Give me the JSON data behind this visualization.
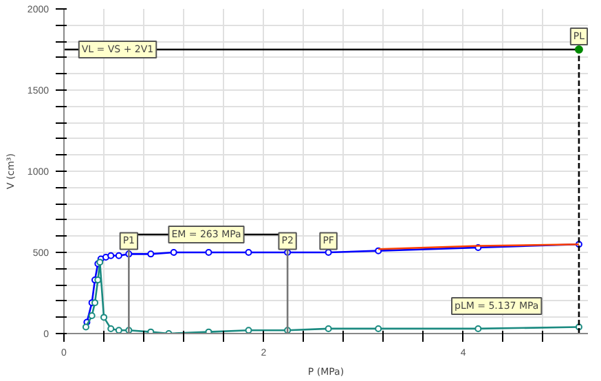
{
  "chart_data": {
    "type": "line",
    "xlabel": "P (MPa)",
    "ylabel": "V (cm³)",
    "xlim": [
      0,
      5.25
    ],
    "ylim": [
      0,
      2000
    ],
    "xticks": [
      0,
      {
        "value": 0.4,
        "label": null
      },
      {
        "value": 0.8,
        "label": null
      },
      {
        "value": 1.2,
        "label": null
      },
      {
        "value": 1.6,
        "label": null
      },
      2,
      {
        "value": 2.4,
        "label": null
      },
      {
        "value": 2.8,
        "label": null
      },
      {
        "value": 3.2,
        "label": null
      },
      {
        "value": 3.6,
        "label": null
      },
      4,
      {
        "value": 4.4,
        "label": null
      },
      {
        "value": 4.8,
        "label": null
      }
    ],
    "yticks": [
      0,
      {
        "value": 100,
        "label": null
      },
      {
        "value": 200,
        "label": null
      },
      {
        "value": 300,
        "label": null
      },
      {
        "value": 400,
        "label": null
      },
      500,
      {
        "value": 600,
        "label": null
      },
      {
        "value": 700,
        "label": null
      },
      {
        "value": 800,
        "label": null
      },
      {
        "value": 900,
        "label": null
      },
      1000,
      {
        "value": 1100,
        "label": null
      },
      {
        "value": 1200,
        "label": null
      },
      {
        "value": 1300,
        "label": null
      },
      {
        "value": 1400,
        "label": null
      },
      1500,
      {
        "value": 1600,
        "label": null
      },
      {
        "value": 1700,
        "label": null
      },
      {
        "value": 1800,
        "label": null
      },
      {
        "value": 1900,
        "label": null
      },
      2000
    ],
    "grid": true,
    "series": [
      {
        "color": "#0000ff",
        "marker": "circle",
        "x": [
          0.23,
          0.28,
          0.31,
          0.34,
          0.37,
          0.42,
          0.47,
          0.55,
          0.65,
          0.87,
          1.1,
          1.45,
          1.85,
          2.24,
          2.65,
          3.15,
          4.15,
          5.16
        ],
        "values": [
          70,
          190,
          330,
          430,
          460,
          470,
          480,
          480,
          490,
          490,
          500,
          500,
          500,
          500,
          500,
          510,
          530,
          550
        ]
      },
      {
        "color": "#ff4000",
        "marker": "none",
        "x": [
          3.15,
          4.15,
          5.16
        ],
        "values": [
          520,
          540,
          550
        ]
      },
      {
        "color": "#1a8a80",
        "marker": "circle",
        "x": [
          0.22,
          0.28,
          0.31,
          0.34,
          0.36,
          0.4,
          0.47,
          0.55,
          0.65,
          0.87,
          1.05,
          1.45,
          1.85,
          2.24,
          2.65,
          3.15,
          4.15,
          5.16
        ],
        "values": [
          40,
          110,
          190,
          330,
          440,
          100,
          30,
          20,
          20,
          10,
          0,
          10,
          20,
          20,
          30,
          30,
          30,
          40
        ]
      },
      {
        "color": "#777777",
        "marker": "none",
        "x": [
          0.65,
          0.65
        ],
        "values": [
          0,
          610
        ]
      },
      {
        "color": "#777777",
        "marker": "none",
        "x": [
          2.24,
          2.24
        ],
        "values": [
          0,
          610
        ]
      },
      {
        "color": "#000000",
        "marker": "none",
        "x": [
          0.65,
          2.24
        ],
        "values": [
          610,
          610
        ]
      },
      {
        "color": "#000000",
        "marker": "none",
        "line_style": "dashed",
        "x": [
          5.16,
          5.16
        ],
        "values": [
          0,
          1750
        ]
      },
      {
        "color": "#000000",
        "marker": "none",
        "x": [
          0,
          5.16
        ],
        "values": [
          1750,
          1750
        ]
      },
      {
        "color": "#008800",
        "type": "scatter",
        "marker": "circle",
        "x": [
          5.16
        ],
        "values": [
          1750
        ]
      }
    ],
    "annotations": [
      {
        "text": "VL = VS + 2V1",
        "x": 0.15,
        "y": 1750
      },
      {
        "text": "PL",
        "x": 5.16,
        "y": 1830
      },
      {
        "text": "P1",
        "x": 0.65,
        "y": 570
      },
      {
        "text": "EM = 263 MPa",
        "x": 1.05,
        "y": 610
      },
      {
        "text": "P2",
        "x": 2.24,
        "y": 570
      },
      {
        "text": "PF",
        "x": 2.65,
        "y": 570
      },
      "pLM = 5.137 MPa"
    ]
  }
}
